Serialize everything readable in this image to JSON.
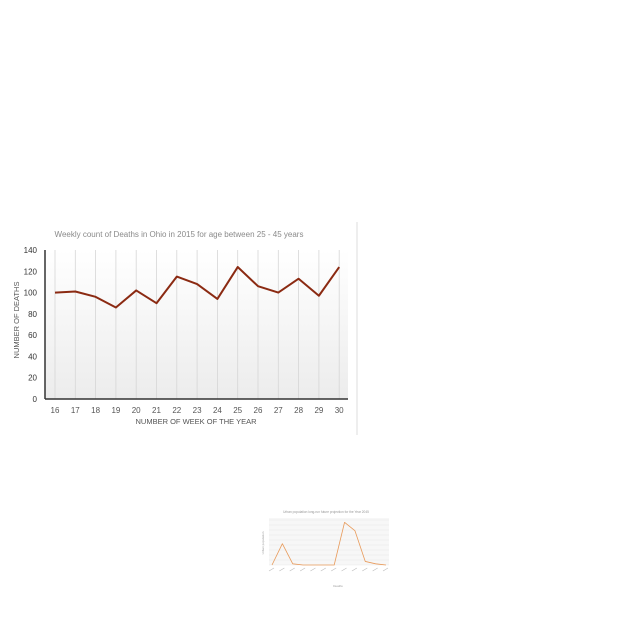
{
  "chart_data": [
    {
      "type": "line",
      "title": "Weekly  count of Deaths  in Ohio in 2015 for age between  25 - 45 years",
      "xlabel": "NUMBER OF WEEK OF THE YEAR",
      "ylabel": "NUMBER OF DEATHS",
      "categories": [
        "16",
        "17",
        "18",
        "19",
        "20",
        "21",
        "22",
        "23",
        "24",
        "25",
        "26",
        "27",
        "28",
        "29",
        "30"
      ],
      "series": [
        {
          "values": [
            100,
            101,
            96,
            86,
            102,
            90,
            115,
            108,
            94,
            124,
            106,
            100,
            113,
            97,
            124
          ]
        }
      ],
      "ylim": [
        0,
        140
      ],
      "yticks": [
        0,
        20,
        40,
        60,
        80,
        100,
        120,
        140
      ],
      "grid": "vertical",
      "colors": {
        "line": "#8b2a12",
        "axis": "#333333",
        "text": "#555555",
        "title": "#8a8a8a"
      }
    },
    {
      "type": "line",
      "title": "Urban population long-run future projection for the Year 2045",
      "xlabel": "Deaths",
      "ylabel": "Urban population",
      "categories": [
        "",
        "",
        "",
        "",
        "",
        "",
        "",
        "",
        "",
        "",
        "",
        ""
      ],
      "series": [
        {
          "values": [
            0,
            900000,
            50000,
            0,
            0,
            0,
            0,
            1800000,
            1450000,
            150000,
            50000,
            0
          ]
        }
      ],
      "ylim": [
        0,
        1900000
      ],
      "grid": "horizontal",
      "colors": {
        "line": "#e89a5a",
        "text": "#999999"
      }
    }
  ]
}
